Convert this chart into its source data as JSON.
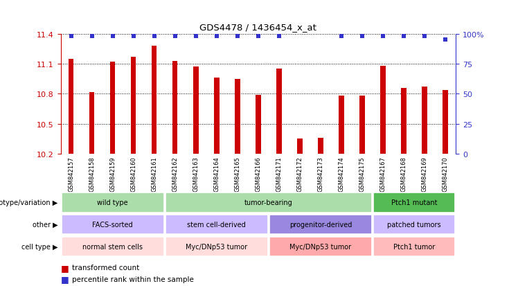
{
  "title": "GDS4478 / 1436454_x_at",
  "samples": [
    "GSM842157",
    "GSM842158",
    "GSM842159",
    "GSM842160",
    "GSM842161",
    "GSM842162",
    "GSM842163",
    "GSM842164",
    "GSM842165",
    "GSM842166",
    "GSM842171",
    "GSM842172",
    "GSM842173",
    "GSM842174",
    "GSM842175",
    "GSM842167",
    "GSM842168",
    "GSM842169",
    "GSM842170"
  ],
  "bar_values": [
    11.15,
    10.82,
    11.12,
    11.17,
    11.28,
    11.13,
    11.07,
    10.96,
    10.95,
    10.79,
    11.05,
    10.35,
    10.36,
    10.78,
    10.78,
    11.08,
    10.86,
    10.87,
    10.84
  ],
  "percentile_values": [
    98,
    98,
    98,
    98,
    98,
    98,
    98,
    98,
    98,
    98,
    98,
    98,
    98,
    98,
    98,
    98,
    98,
    98,
    95
  ],
  "percentile_show": [
    true,
    true,
    true,
    true,
    true,
    true,
    true,
    true,
    true,
    true,
    true,
    false,
    false,
    true,
    true,
    true,
    true,
    true,
    true
  ],
  "ymin": 10.2,
  "ymax": 11.4,
  "yticks": [
    10.2,
    10.5,
    10.8,
    11.1,
    11.4
  ],
  "y2ticks": [
    0,
    25,
    50,
    75,
    100
  ],
  "bar_color": "#cc0000",
  "dot_color": "#3333cc",
  "bar_width": 0.25,
  "genotype_groups": [
    {
      "label": "wild type",
      "start": 0,
      "end": 5,
      "color": "#aaddaa"
    },
    {
      "label": "tumor-bearing",
      "start": 5,
      "end": 15,
      "color": "#aaddaa"
    },
    {
      "label": "Ptch1 mutant",
      "start": 15,
      "end": 19,
      "color": "#55bb55"
    }
  ],
  "other_groups": [
    {
      "label": "FACS-sorted",
      "start": 0,
      "end": 5,
      "color": "#ccbbff"
    },
    {
      "label": "stem cell-derived",
      "start": 5,
      "end": 10,
      "color": "#ccbbff"
    },
    {
      "label": "progenitor-derived",
      "start": 10,
      "end": 15,
      "color": "#9988dd"
    },
    {
      "label": "patched tumors",
      "start": 15,
      "end": 19,
      "color": "#ccbbff"
    }
  ],
  "celltype_groups": [
    {
      "label": "normal stem cells",
      "start": 0,
      "end": 5,
      "color": "#ffdddd"
    },
    {
      "label": "Myc/DNp53 tumor",
      "start": 5,
      "end": 10,
      "color": "#ffdddd"
    },
    {
      "label": "Myc/DNp53 tumor",
      "start": 10,
      "end": 15,
      "color": "#ffaaaa"
    },
    {
      "label": "Ptch1 tumor",
      "start": 15,
      "end": 19,
      "color": "#ffbbbb"
    }
  ],
  "row_labels": [
    "genotype/variation",
    "other",
    "cell type"
  ],
  "legend_items": [
    {
      "label": "transformed count",
      "color": "#cc0000"
    },
    {
      "label": "percentile rank within the sample",
      "color": "#3333cc"
    }
  ],
  "background_color": "#ffffff",
  "tick_label_color": "#cc0000",
  "y2_color": "#3333cc"
}
